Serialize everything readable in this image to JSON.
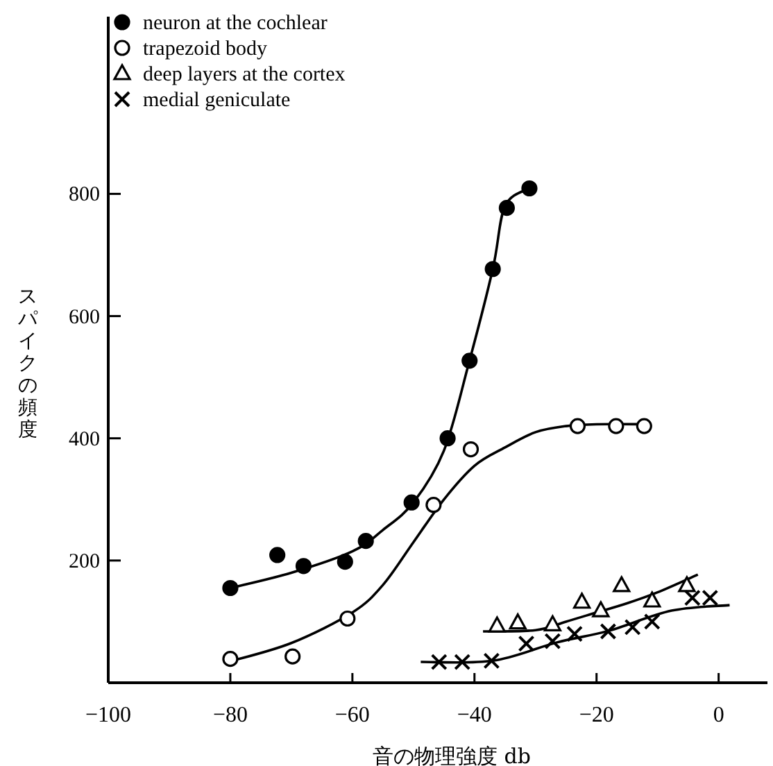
{
  "chart_data": {
    "type": "scatter",
    "xlabel": "音の物理強度 db",
    "ylabel": "スパイクの頻度",
    "xlim": [
      -100,
      8
    ],
    "ylim": [
      0,
      1090
    ],
    "xticks": [
      {
        "value": -100,
        "label": "−100"
      },
      {
        "value": -80,
        "label": "−80"
      },
      {
        "value": -60,
        "label": "−60"
      },
      {
        "value": -40,
        "label": "−40"
      },
      {
        "value": -20,
        "label": "−20"
      },
      {
        "value": 0,
        "label": "0"
      }
    ],
    "yticks": [
      200,
      400,
      600,
      800
    ],
    "grid": false,
    "legend": "top left",
    "series": [
      {
        "name": "neuron at the cochlear",
        "marker": "circle",
        "color": "#000000",
        "x": [
          -80,
          -72.3,
          -68,
          -61.2,
          -57.8,
          -50.3,
          -44.4,
          -40.8,
          -37,
          -34.7,
          -31
        ],
        "values": [
          155,
          209,
          191,
          198,
          232,
          295,
          400,
          527,
          677,
          777,
          809
        ]
      },
      {
        "name": "trapezoid body",
        "marker": "circle",
        "color": "#ffffff",
        "x": [
          -80,
          -69.8,
          -60.8,
          -46.7,
          -40.6,
          -23.1,
          -16.8,
          -12.2
        ],
        "values": [
          39,
          43,
          105,
          291,
          382,
          420,
          420,
          420
        ]
      },
      {
        "name": "deep layers at the cortex",
        "marker": "triangle",
        "color": "#ffffff",
        "x": [
          -36.3,
          -32.9,
          -27.2,
          -22.4,
          -19.3,
          -15.9,
          -10.9,
          -5.2
        ],
        "values": [
          93,
          98,
          95,
          132,
          118,
          159,
          134,
          159
        ]
      },
      {
        "name": "medial geniculate",
        "marker": "cross",
        "color": "#000000",
        "x": [
          -45.8,
          -42,
          -37.2,
          -31.5,
          -27.2,
          -23.6,
          -18.1,
          -14.1,
          -10.9,
          -4.3,
          -1.4
        ],
        "values": [
          34,
          34,
          36,
          64,
          68,
          80,
          84,
          91,
          100,
          139,
          139
        ]
      },
      {
        "type": "line",
        "marker": "none",
        "color": "#000000",
        "x": [
          -80,
          -70,
          -60,
          -55,
          -50,
          -45,
          -41,
          -37,
          -35,
          -31
        ],
        "values": [
          155,
          180,
          215,
          250,
          295,
          380,
          520,
          677,
          780,
          809
        ]
      },
      {
        "type": "line",
        "marker": "none",
        "color": "#000000",
        "x": [
          -80,
          -70,
          -60,
          -55,
          -50,
          -45,
          -40,
          -35,
          -30,
          -25,
          -20,
          -12
        ],
        "values": [
          35,
          65,
          115,
          160,
          230,
          300,
          355,
          385,
          410,
          420,
          423,
          423
        ]
      },
      {
        "type": "line",
        "marker": "none",
        "color": "#000000",
        "x": [
          -38.6,
          -30,
          -25,
          -20,
          -15,
          -10,
          -3.4
        ],
        "values": [
          84,
          86,
          100,
          115,
          130,
          148,
          177
        ]
      },
      {
        "type": "line",
        "marker": "none",
        "color": "#000000",
        "x": [
          -48.8,
          -37,
          -26.5,
          -18,
          -7.7,
          1.8
        ],
        "values": [
          34,
          36,
          66,
          85,
          118,
          127
        ]
      }
    ]
  }
}
